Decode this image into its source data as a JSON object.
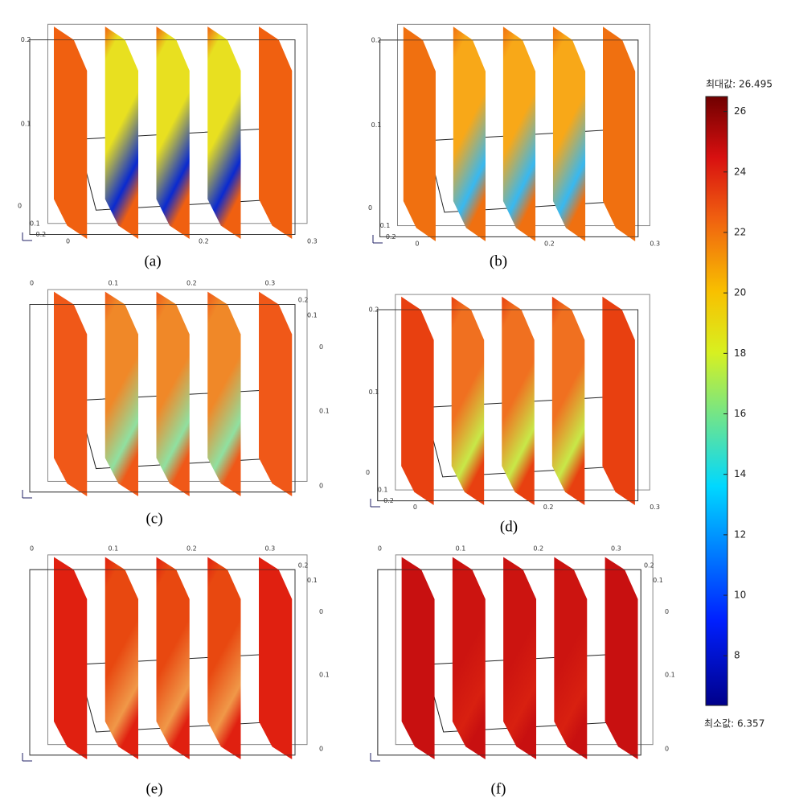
{
  "figure": {
    "panels": [
      {
        "label": "(a)",
        "tick_labels": [
          "0.2",
          "0.1",
          "0",
          "0.1",
          "0.2",
          "0",
          "0.2",
          "0.3"
        ]
      },
      {
        "label": "(b)",
        "tick_labels": [
          "0.2",
          "0.1",
          "0",
          "0.1",
          "0.2",
          "0",
          "0.2",
          "0.3"
        ]
      },
      {
        "label": "(c)",
        "tick_labels": [
          "0",
          "0.1",
          "0.2",
          "0.3",
          "0.2",
          "0.1",
          "0",
          "0.1",
          "0"
        ]
      },
      {
        "label": "(d)",
        "tick_labels": [
          "0.2",
          "0.1",
          "0",
          "0.1",
          "0.2",
          "0",
          "0.2",
          "0.3"
        ]
      },
      {
        "label": "(e)",
        "tick_labels": [
          "0",
          "0.1",
          "0.2",
          "0.3",
          "0.2",
          "0.1",
          "0",
          "0.1",
          "0"
        ]
      },
      {
        "label": "(f)",
        "tick_labels": [
          "0",
          "0.1",
          "0.2",
          "0.3",
          "0.2",
          "0.1",
          "0",
          "0.1",
          "0"
        ]
      }
    ],
    "colorbar": {
      "max_label": "최대값: 26.495",
      "min_label": "최소값: 6.357",
      "min": 6.357,
      "max": 26.495,
      "ticks": [
        8,
        10,
        12,
        14,
        16,
        18,
        20,
        22,
        24,
        26
      ]
    }
  }
}
